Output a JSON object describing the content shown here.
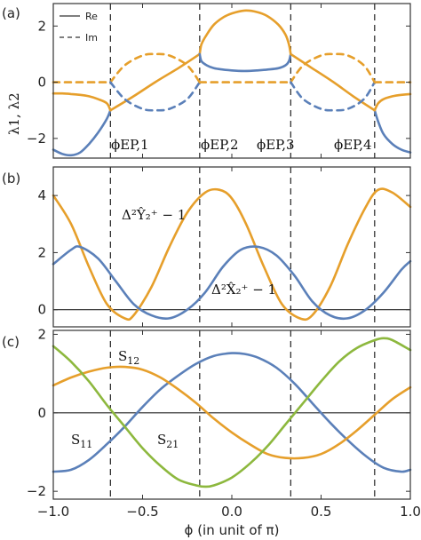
{
  "chart_data": [
    {
      "panel": "(a)",
      "type": "line",
      "ylabel": "λ1, λ2",
      "ylim": [
        -2.7,
        2.8
      ],
      "xlim": [
        -1.0,
        1.0
      ],
      "yticks": [
        -2,
        0,
        2
      ],
      "legend": {
        "position": "top-left",
        "entries": [
          "Re",
          "Im"
        ]
      },
      "vlines": [
        -0.68,
        -0.18,
        0.33,
        0.8
      ],
      "annotations": [
        "ϕEP,1",
        "ϕEP,2",
        "ϕEP,3",
        "ϕEP,4"
      ],
      "series": [
        {
          "color": "#5b80b9",
          "style": "solid",
          "x": [
            -1.0,
            -0.95,
            -0.9,
            -0.85,
            -0.8,
            -0.75,
            -0.7,
            -0.68
          ],
          "y": [
            -2.4,
            -2.55,
            -2.6,
            -2.5,
            -2.2,
            -1.8,
            -1.3,
            -1.0
          ]
        },
        {
          "color": "#e69f2b",
          "style": "solid",
          "x": [
            -1.0,
            -0.95,
            -0.9,
            -0.85,
            -0.8,
            -0.75,
            -0.7,
            -0.68
          ],
          "y": [
            -0.4,
            -0.4,
            -0.42,
            -0.45,
            -0.5,
            -0.6,
            -0.75,
            -1.0
          ]
        },
        {
          "color": "#e69f2b",
          "style": "solid",
          "x": [
            -0.68,
            -0.55,
            -0.43,
            -0.3,
            -0.18
          ],
          "y": [
            -1.0,
            -0.5,
            0.0,
            0.5,
            1.0
          ]
        },
        {
          "color": "#e69f2b",
          "style": "dashed",
          "x": [
            -0.68,
            -0.6,
            -0.5,
            -0.43,
            -0.35,
            -0.25,
            -0.18
          ],
          "y": [
            0.0,
            0.6,
            0.95,
            1.0,
            0.95,
            0.6,
            0.0
          ]
        },
        {
          "color": "#5b80b9",
          "style": "dashed",
          "x": [
            -0.68,
            -0.6,
            -0.5,
            -0.43,
            -0.35,
            -0.25,
            -0.18
          ],
          "y": [
            0.0,
            -0.6,
            -0.95,
            -1.0,
            -0.95,
            -0.6,
            0.0
          ]
        },
        {
          "color": "#e69f2b",
          "style": "solid",
          "x": [
            -0.18,
            -0.17,
            -0.14,
            -0.1,
            -0.05,
            0.0,
            0.07,
            0.14,
            0.2,
            0.26,
            0.3,
            0.32,
            0.33
          ],
          "y": [
            1.0,
            1.35,
            1.7,
            2.05,
            2.3,
            2.45,
            2.55,
            2.5,
            2.35,
            2.05,
            1.7,
            1.35,
            1.0
          ]
        },
        {
          "color": "#5b80b9",
          "style": "solid",
          "x": [
            -0.18,
            -0.17,
            -0.14,
            -0.1,
            -0.05,
            0.0,
            0.07,
            0.14,
            0.2,
            0.26,
            0.3,
            0.32,
            0.33
          ],
          "y": [
            1.0,
            0.75,
            0.6,
            0.5,
            0.45,
            0.42,
            0.4,
            0.42,
            0.45,
            0.5,
            0.6,
            0.75,
            1.0
          ]
        },
        {
          "color": "#e69f2b",
          "style": "dashed",
          "x": [
            -0.18,
            0.33
          ],
          "y": [
            0.0,
            0.0
          ]
        },
        {
          "color": "#e69f2b",
          "style": "solid",
          "x": [
            0.33,
            0.45,
            0.57,
            0.68,
            0.8
          ],
          "y": [
            1.0,
            0.5,
            0.0,
            -0.5,
            -1.0
          ]
        },
        {
          "color": "#e69f2b",
          "style": "dashed",
          "x": [
            0.33,
            0.4,
            0.5,
            0.57,
            0.65,
            0.74,
            0.8
          ],
          "y": [
            0.0,
            0.6,
            0.95,
            1.0,
            0.95,
            0.6,
            0.0
          ]
        },
        {
          "color": "#5b80b9",
          "style": "dashed",
          "x": [
            0.33,
            0.4,
            0.5,
            0.57,
            0.65,
            0.74,
            0.8
          ],
          "y": [
            0.0,
            -0.6,
            -0.95,
            -1.0,
            -0.95,
            -0.6,
            0.0
          ]
        },
        {
          "color": "#5b80b9",
          "style": "solid",
          "x": [
            0.8,
            0.82,
            0.85,
            0.9,
            0.95,
            1.0
          ],
          "y": [
            -1.0,
            -1.4,
            -1.85,
            -2.2,
            -2.4,
            -2.5
          ]
        },
        {
          "color": "#e69f2b",
          "style": "solid",
          "x": [
            0.8,
            0.82,
            0.85,
            0.9,
            0.95,
            1.0
          ],
          "y": [
            -1.0,
            -0.75,
            -0.6,
            -0.5,
            -0.45,
            -0.42
          ]
        },
        {
          "color": "#e69f2b",
          "style": "dashed",
          "x": [
            -1.0,
            -0.68
          ],
          "y": [
            0.0,
            0.0
          ]
        },
        {
          "color": "#e69f2b",
          "style": "dashed",
          "x": [
            0.8,
            1.0
          ],
          "y": [
            0.0,
            0.0
          ]
        }
      ]
    },
    {
      "panel": "(b)",
      "type": "line",
      "ylim": [
        -0.6,
        5.0
      ],
      "xlim": [
        -1.0,
        1.0
      ],
      "yticks": [
        0,
        2,
        4
      ],
      "vlines": [
        -0.68,
        -0.18,
        0.33,
        0.8
      ],
      "hline": 0,
      "annotations": [
        "Δ²Ŷ₂⁺ − 1",
        "Δ²X̂₂⁺ − 1"
      ],
      "series": [
        {
          "name": "Δ²Ŷ₂⁺ − 1",
          "color": "#e69f2b",
          "x": [
            -1.0,
            -0.9,
            -0.8,
            -0.7,
            -0.6,
            -0.55,
            -0.45,
            -0.35,
            -0.25,
            -0.15,
            -0.07,
            0.0,
            0.08,
            0.18,
            0.28,
            0.38,
            0.45,
            0.55,
            0.65,
            0.75,
            0.82,
            0.9,
            1.0
          ],
          "y": [
            4.0,
            3.0,
            1.5,
            0.2,
            -0.3,
            -0.2,
            0.8,
            2.2,
            3.4,
            4.1,
            4.2,
            3.9,
            3.0,
            1.5,
            0.2,
            -0.3,
            -0.2,
            0.8,
            2.3,
            3.6,
            4.2,
            4.1,
            3.6
          ]
        },
        {
          "name": "Δ²X̂₂⁺ − 1",
          "color": "#5b80b9",
          "x": [
            -1.0,
            -0.9,
            -0.85,
            -0.75,
            -0.65,
            -0.55,
            -0.45,
            -0.35,
            -0.25,
            -0.15,
            -0.05,
            0.05,
            0.15,
            0.25,
            0.35,
            0.45,
            0.55,
            0.65,
            0.75,
            0.85,
            0.95,
            1.0
          ],
          "y": [
            1.6,
            2.1,
            2.2,
            1.8,
            1.0,
            0.2,
            -0.2,
            -0.3,
            0.0,
            0.6,
            1.5,
            2.1,
            2.2,
            1.9,
            1.2,
            0.3,
            -0.2,
            -0.3,
            0.0,
            0.6,
            1.4,
            1.7
          ]
        }
      ]
    },
    {
      "panel": "(c)",
      "type": "line",
      "xlabel": "ϕ (in unit of π)",
      "ylim": [
        -2.2,
        2.1
      ],
      "xlim": [
        -1.0,
        1.0
      ],
      "yticks": [
        -2,
        0,
        2
      ],
      "xticks": [
        -1.0,
        -0.5,
        0.0,
        0.5,
        1.0
      ],
      "vlines": [
        -0.68,
        -0.18,
        0.33,
        0.8
      ],
      "hline": 0,
      "annotations": [
        "S12",
        "S11",
        "S21"
      ],
      "series": [
        {
          "name": "S11",
          "color": "#5b80b9",
          "x": [
            -1.0,
            -0.9,
            -0.8,
            -0.7,
            -0.6,
            -0.5,
            -0.4,
            -0.3,
            -0.2,
            -0.1,
            0.0,
            0.07,
            0.15,
            0.25,
            0.35,
            0.45,
            0.55,
            0.65,
            0.75,
            0.85,
            0.95,
            1.0
          ],
          "y": [
            -1.5,
            -1.45,
            -1.2,
            -0.8,
            -0.35,
            0.15,
            0.6,
            0.95,
            1.25,
            1.45,
            1.52,
            1.5,
            1.4,
            1.15,
            0.75,
            0.25,
            -0.25,
            -0.7,
            -1.1,
            -1.4,
            -1.5,
            -1.45
          ]
        },
        {
          "name": "S12",
          "color": "#e69f2b",
          "x": [
            -1.0,
            -0.9,
            -0.8,
            -0.7,
            -0.6,
            -0.5,
            -0.4,
            -0.3,
            -0.2,
            -0.1,
            0.0,
            0.1,
            0.2,
            0.3,
            0.4,
            0.5,
            0.6,
            0.7,
            0.8,
            0.9,
            1.0
          ],
          "y": [
            0.7,
            0.9,
            1.05,
            1.15,
            1.17,
            1.1,
            0.9,
            0.6,
            0.25,
            -0.15,
            -0.5,
            -0.8,
            -1.05,
            -1.15,
            -1.15,
            -1.05,
            -0.8,
            -0.45,
            -0.05,
            0.35,
            0.65
          ]
        },
        {
          "name": "S21",
          "color": "#8db83e",
          "x": [
            -1.0,
            -0.9,
            -0.8,
            -0.7,
            -0.6,
            -0.5,
            -0.4,
            -0.3,
            -0.2,
            -0.15,
            -0.1,
            0.0,
            0.1,
            0.2,
            0.3,
            0.4,
            0.5,
            0.6,
            0.7,
            0.8,
            0.85,
            0.9,
            1.0
          ],
          "y": [
            1.7,
            1.3,
            0.8,
            0.2,
            -0.35,
            -0.9,
            -1.35,
            -1.7,
            -1.85,
            -1.88,
            -1.85,
            -1.65,
            -1.3,
            -0.85,
            -0.3,
            0.25,
            0.8,
            1.3,
            1.65,
            1.85,
            1.9,
            1.85,
            1.6
          ]
        }
      ]
    }
  ]
}
